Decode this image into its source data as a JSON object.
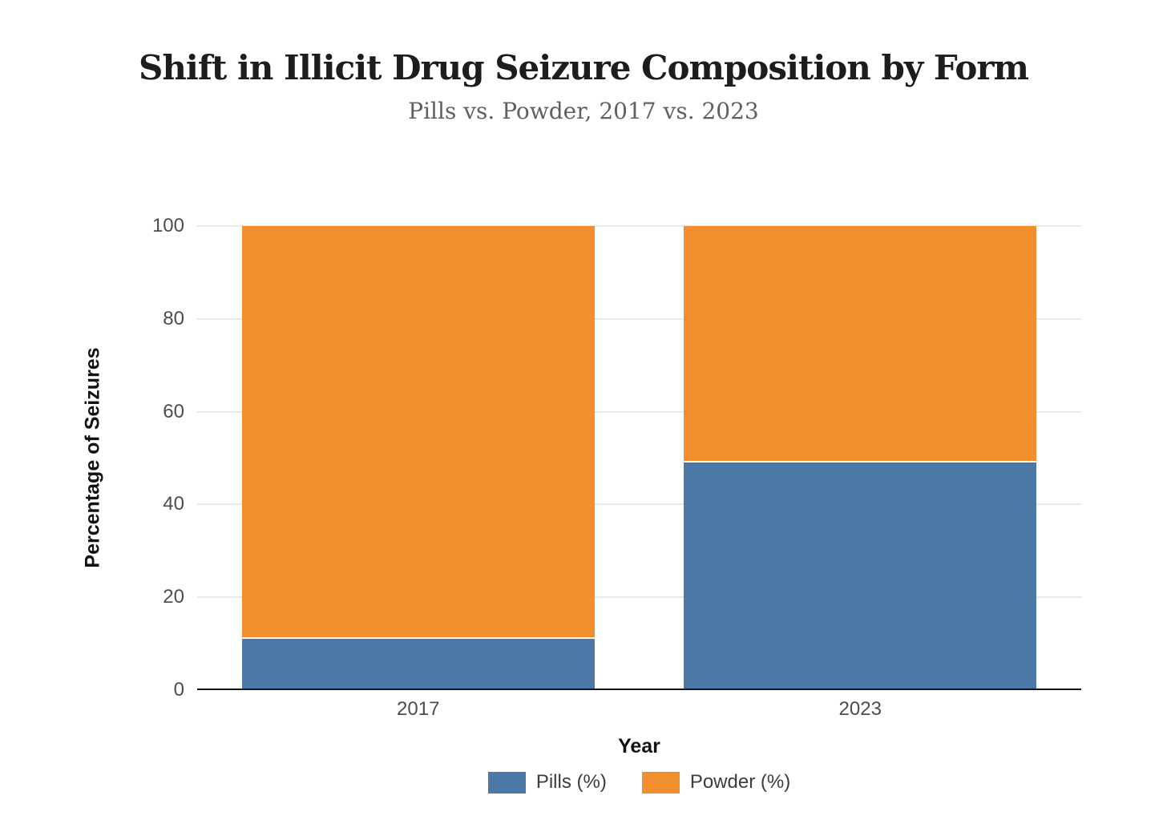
{
  "chart_data": {
    "type": "bar",
    "stacked": true,
    "title": "Shift in Illicit Drug Seizure Composition by Form",
    "subtitle": "Pills vs. Powder, 2017 vs. 2023",
    "categories": [
      "2017",
      "2023"
    ],
    "series": [
      {
        "name": "Pills (%)",
        "color": "#4C78A8",
        "values": [
          11,
          49
        ]
      },
      {
        "name": "Powder (%)",
        "color": "#F28E2B",
        "values": [
          89,
          51
        ]
      }
    ],
    "xlabel": "Year",
    "ylabel": "Percentage of Seizures",
    "ylim": [
      0,
      100
    ],
    "yticks": [
      0,
      20,
      40,
      60,
      80,
      100
    ],
    "grid": true,
    "legend_position": "bottom",
    "colors": {
      "grid": "#e9eaef",
      "axis_line": "#141414",
      "tick_label": "#4d4d4d",
      "title": "#1d1d1d",
      "subtitle": "#606060",
      "legend_text": "#3c3c3c",
      "background": "#ffffff"
    }
  }
}
